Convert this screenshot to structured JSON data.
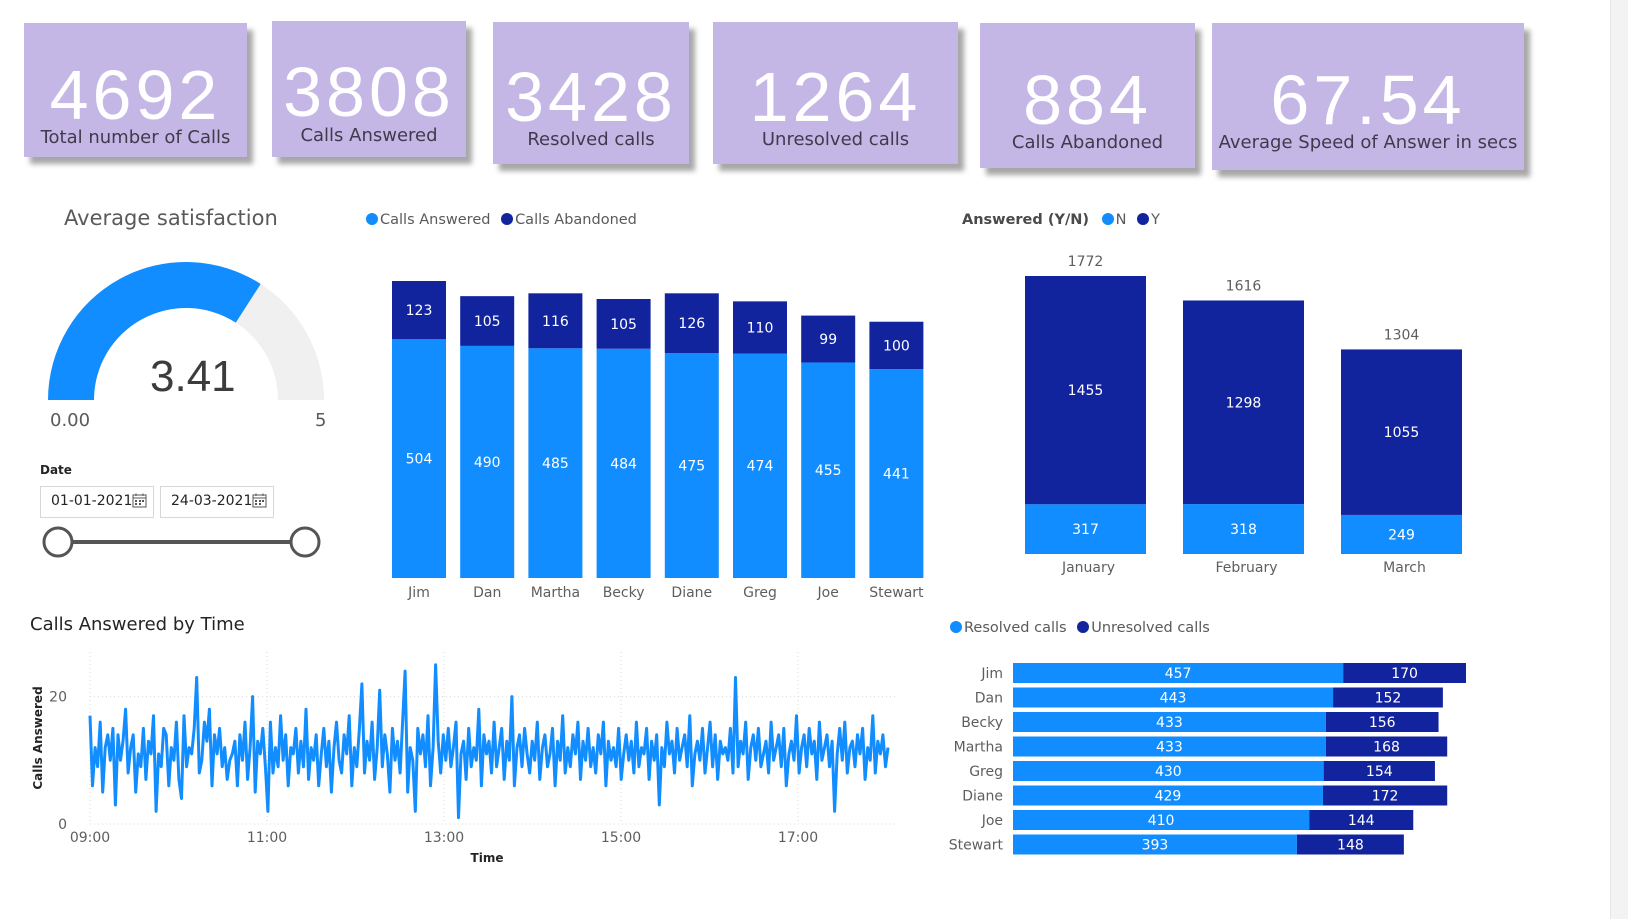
{
  "kpis": [
    {
      "value": "4692",
      "label": "Total number of Calls"
    },
    {
      "value": "3808",
      "label": "Calls Answered"
    },
    {
      "value": "3428",
      "label": "Resolved calls"
    },
    {
      "value": "1264",
      "label": "Unresolved calls"
    },
    {
      "value": "884",
      "label": "Calls Abandoned"
    },
    {
      "value": "67.54",
      "label": "Average Speed of Answer in secs"
    }
  ],
  "gauge": {
    "title": "Average satisfaction",
    "value": 3.41,
    "value_label": "3.41",
    "min_label": "0.00",
    "max_label": "5",
    "min": 0,
    "max": 5,
    "fill_color": "#118dff",
    "track_color": "#f0f0f0"
  },
  "date_slicer": {
    "label": "Date",
    "start": "01-01-2021",
    "end": "24-03-2021"
  },
  "colors": {
    "light_blue": "#118dff",
    "dark_blue": "#12239e"
  },
  "agent_chart": {
    "legend": [
      "Calls Answered",
      "Calls Abandoned"
    ]
  },
  "month_chart": {
    "legend_title": "Answered (Y/N)",
    "legend": [
      "N",
      "Y"
    ]
  },
  "time_chart": {
    "title": "Calls Answered by Time",
    "xlabel": "Time",
    "ylabel": "Calls Answered"
  },
  "resolved_chart": {
    "legend": [
      "Resolved calls",
      "Unresolved calls"
    ]
  },
  "chart_data": [
    {
      "type": "bar",
      "stacked": true,
      "orientation": "vertical",
      "categories": [
        "Jim",
        "Dan",
        "Martha",
        "Becky",
        "Diane",
        "Greg",
        "Joe",
        "Stewart"
      ],
      "series": [
        {
          "name": "Calls Answered",
          "values": [
            504,
            490,
            485,
            484,
            475,
            474,
            455,
            441
          ]
        },
        {
          "name": "Calls Abandoned",
          "values": [
            123,
            105,
            116,
            105,
            126,
            110,
            99,
            100
          ]
        }
      ],
      "legend": "top-left",
      "grid": false
    },
    {
      "type": "bar",
      "stacked": true,
      "orientation": "vertical",
      "categories": [
        "January",
        "February",
        "March"
      ],
      "series": [
        {
          "name": "N",
          "values": [
            317,
            318,
            249
          ]
        },
        {
          "name": "Y",
          "values": [
            1455,
            1298,
            1055
          ]
        }
      ],
      "totals": [
        1772,
        1616,
        1304
      ],
      "legend": "top-left",
      "grid": false
    },
    {
      "type": "line",
      "x_range": [
        "09:00",
        "18:00"
      ],
      "x_ticks": [
        "09:00",
        "11:00",
        "13:00",
        "15:00",
        "17:00"
      ],
      "y_ticks": [
        "0",
        "20"
      ],
      "ylim": [
        0,
        27
      ],
      "grid": true,
      "series": [
        {
          "values": [
            17,
            6,
            12,
            9,
            16,
            5,
            12,
            14,
            10,
            15,
            3,
            14,
            10,
            13,
            18,
            8,
            12,
            14,
            5,
            11,
            9,
            15,
            7,
            13,
            11,
            17,
            2,
            11,
            9,
            15,
            14,
            6,
            12,
            10,
            16,
            7,
            4,
            17,
            9,
            12,
            11,
            15,
            23,
            8,
            10,
            16,
            13,
            18,
            6,
            14,
            11,
            15,
            9,
            12,
            7,
            10,
            11,
            13,
            6,
            14,
            10,
            16,
            7,
            12,
            20,
            5,
            13,
            11,
            15,
            9,
            2,
            16,
            8,
            12,
            9,
            17,
            10,
            14,
            6,
            12,
            11,
            15,
            8,
            13,
            9,
            18,
            7,
            12,
            10,
            14,
            6,
            11,
            15,
            9,
            13,
            5,
            12,
            16,
            10,
            8,
            14,
            11,
            17,
            6,
            12,
            9,
            15,
            22,
            8,
            13,
            10,
            16,
            7,
            12,
            21,
            9,
            14,
            11,
            5,
            15,
            10,
            13,
            8,
            16,
            24,
            5,
            12,
            10,
            2,
            15,
            11,
            14,
            9,
            17,
            6,
            12,
            25,
            13,
            8,
            14,
            10,
            15,
            9,
            12,
            16,
            1,
            11,
            13,
            7,
            15,
            9,
            12,
            10,
            18,
            6,
            14,
            11,
            13,
            8,
            16,
            9,
            12,
            15,
            7,
            13,
            10,
            20,
            6,
            12,
            14,
            9,
            15,
            11,
            8,
            13,
            10,
            16,
            7,
            12,
            14,
            9,
            11,
            15,
            6,
            13,
            10,
            17,
            8,
            12,
            9,
            14,
            11,
            16,
            7,
            13,
            10,
            15,
            9,
            12,
            8,
            14,
            11,
            16,
            6,
            13,
            10,
            12,
            9,
            15,
            7,
            11,
            14,
            10,
            13,
            8,
            16,
            9,
            12,
            11,
            15,
            7,
            13,
            10,
            14,
            3,
            12,
            9,
            16,
            11,
            13,
            8,
            15,
            10,
            12,
            14,
            9,
            17,
            6,
            11,
            13,
            10,
            15,
            8,
            12,
            16,
            9,
            14,
            7,
            13,
            11,
            12,
            10,
            15,
            8,
            23,
            9,
            13,
            11,
            16,
            7,
            12,
            14,
            10,
            15,
            9,
            11,
            13,
            8,
            16,
            10,
            12,
            14,
            9,
            15,
            6,
            11,
            13,
            10,
            17,
            8,
            12,
            14,
            9,
            15,
            11,
            13,
            7,
            16,
            10,
            12,
            14,
            9,
            13,
            2,
            11,
            15,
            10,
            16,
            8,
            12,
            13,
            9,
            14,
            11,
            15,
            7,
            12,
            10,
            17,
            8,
            13,
            11,
            14,
            9,
            12
          ]
        }
      ]
    },
    {
      "type": "bar",
      "stacked": true,
      "orientation": "horizontal",
      "categories": [
        "Jim",
        "Dan",
        "Becky",
        "Martha",
        "Greg",
        "Diane",
        "Joe",
        "Stewart"
      ],
      "series": [
        {
          "name": "Resolved calls",
          "values": [
            457,
            443,
            433,
            433,
            430,
            429,
            410,
            393
          ]
        },
        {
          "name": "Unresolved calls",
          "values": [
            170,
            152,
            156,
            168,
            154,
            172,
            144,
            148
          ]
        }
      ],
      "legend": "top-left",
      "grid": false
    }
  ]
}
